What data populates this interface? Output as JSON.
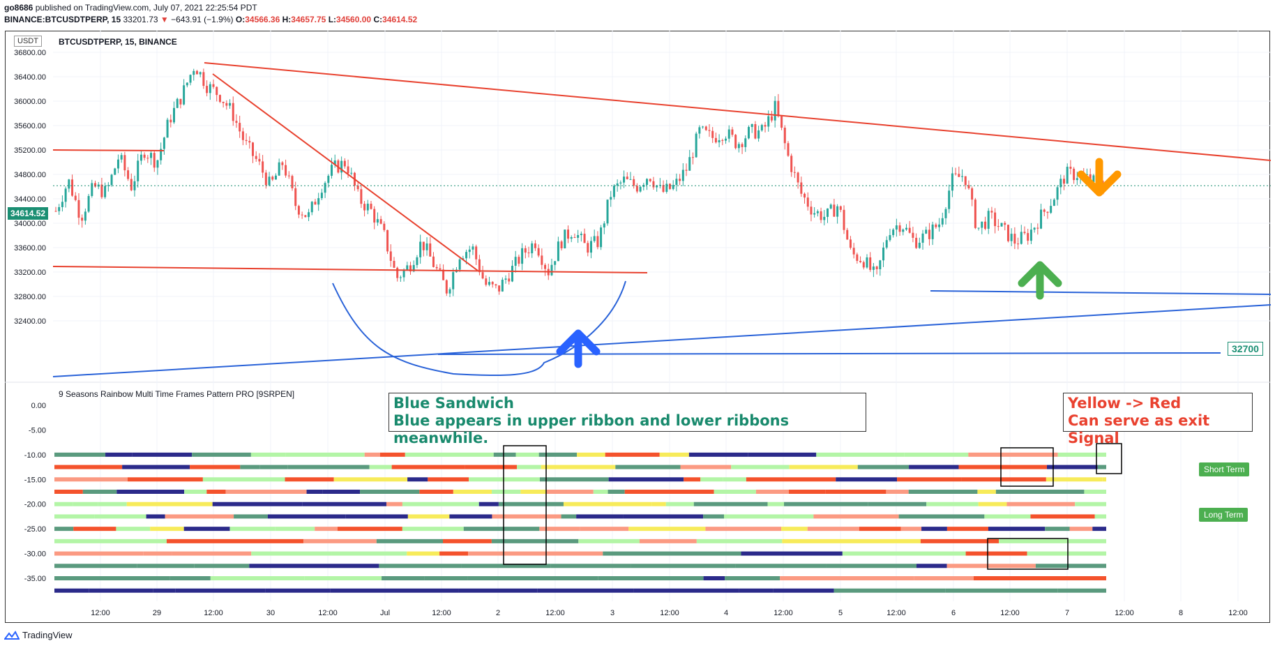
{
  "header": {
    "line1_user": "go8686",
    "line1_rest": "published on TradingView.com, July 07, 2021 22:25:54 PDT",
    "symbol": "BINANCE:BTCUSDTPERP, 15",
    "last": "33201.73",
    "change": "−643.91 (−1.9%)",
    "o_label": "O:",
    "o": "34566.36",
    "h_label": "H:",
    "h": "34657.75",
    "l_label": "L:",
    "l": "34560.00",
    "c_label": "C:",
    "c": "34614.52"
  },
  "chart_title": "BTCUSDTPERP, 15, BINANCE",
  "currency_badge": "USDT",
  "price_badge": "34614.52",
  "level_badge": "32700",
  "indicator_title": "9 Seasons Rainbow Multi Time Frames Pattern PRO [9SRPEN]",
  "annotation_blue": {
    "line1": "Blue Sandwich",
    "line2": "Blue appears in upper ribbon and lower ribbons meanwhile."
  },
  "annotation_red": {
    "line1": "Yellow -> Red",
    "line2": "Can serve as exit Signal"
  },
  "tags": {
    "short": "Short Term",
    "long": "Long Term"
  },
  "footer": "TradingView",
  "colors": {
    "red_line": "#e8412e",
    "blue_line": "#2962d8",
    "candle_up": "#26a69a",
    "candle_down": "#ef5350",
    "arrow_blue": "#2962ff",
    "arrow_green": "#4caf50",
    "arrow_orange": "#ff9800"
  },
  "chart_data": [
    {
      "type": "candlestick",
      "title": "BTCUSDTPERP, 15, BINANCE",
      "yticks": [
        36800,
        36400,
        36000,
        35600,
        35200,
        34800,
        34400,
        34000,
        33600,
        33200,
        32800,
        32400
      ],
      "ylim": [
        32350,
        36900
      ],
      "xticks": [
        "12:00",
        "29",
        "12:00",
        "30",
        "12:00",
        "Jul",
        "12:00",
        "2",
        "12:00",
        "3",
        "12:00",
        "4",
        "12:00",
        "5",
        "12:00",
        "6",
        "12:00",
        "7",
        "12:00",
        "8",
        "12:00"
      ],
      "last_price": 34614.52,
      "price_path": [
        [
          0,
          34200
        ],
        [
          1,
          34700
        ],
        [
          2,
          34100
        ],
        [
          3,
          34600
        ],
        [
          4,
          34500
        ],
        [
          5,
          35100
        ],
        [
          6,
          34600
        ],
        [
          7,
          35200
        ],
        [
          8,
          35000
        ],
        [
          9,
          35700
        ],
        [
          10,
          36100
        ],
        [
          11,
          36600
        ],
        [
          12,
          36250
        ],
        [
          13,
          36100
        ],
        [
          14,
          35800
        ],
        [
          15,
          35300
        ],
        [
          16,
          35000
        ],
        [
          17,
          34600
        ],
        [
          18,
          35000
        ],
        [
          19,
          34300
        ],
        [
          20,
          34100
        ],
        [
          21,
          34600
        ],
        [
          22,
          34900
        ],
        [
          23,
          35000
        ],
        [
          24,
          34400
        ],
        [
          25,
          34200
        ],
        [
          26,
          33800
        ],
        [
          27,
          33100
        ],
        [
          28,
          33300
        ],
        [
          29,
          33700
        ],
        [
          30,
          33300
        ],
        [
          31,
          32900
        ],
        [
          32,
          33500
        ],
        [
          33,
          33600
        ],
        [
          34,
          33000
        ],
        [
          35,
          32900
        ],
        [
          36,
          33200
        ],
        [
          37,
          33500
        ],
        [
          38,
          33700
        ],
        [
          39,
          33200
        ],
        [
          40,
          33700
        ],
        [
          41,
          33900
        ],
        [
          42,
          33600
        ],
        [
          43,
          33700
        ],
        [
          44,
          34500
        ],
        [
          45,
          34700
        ],
        [
          46,
          34600
        ],
        [
          47,
          34800
        ],
        [
          48,
          34500
        ],
        [
          49,
          34600
        ],
        [
          50,
          34900
        ],
        [
          51,
          35500
        ],
        [
          52,
          35400
        ],
        [
          53,
          35500
        ],
        [
          54,
          35300
        ],
        [
          55,
          35500
        ],
        [
          56,
          35500
        ],
        [
          57,
          35900
        ],
        [
          58,
          35100
        ],
        [
          59,
          34500
        ],
        [
          60,
          34200
        ],
        [
          61,
          34100
        ],
        [
          62,
          34300
        ],
        [
          63,
          33500
        ],
        [
          64,
          33400
        ],
        [
          65,
          33100
        ],
        [
          66,
          33900
        ],
        [
          67,
          34000
        ],
        [
          68,
          33700
        ],
        [
          69,
          33800
        ],
        [
          70,
          34000
        ],
        [
          71,
          34700
        ],
        [
          72,
          34800
        ],
        [
          73,
          33900
        ],
        [
          74,
          34100
        ],
        [
          75,
          33900
        ],
        [
          76,
          33700
        ],
        [
          77,
          33800
        ],
        [
          78,
          34100
        ],
        [
          79,
          34400
        ],
        [
          80,
          34800
        ],
        [
          81,
          34800
        ],
        [
          82,
          34700
        ],
        [
          83,
          34600
        ]
      ]
    },
    {
      "type": "heatmap",
      "title": "9 Seasons Rainbow Multi Time Frames Pattern PRO [9SRPEN]",
      "yticks": [
        0,
        -5,
        -10,
        -15,
        -20,
        -25,
        -30,
        -35
      ],
      "rows": [
        -10,
        -12.5,
        -15,
        -17.5,
        -20,
        -22.5,
        -25,
        -27.5,
        -30,
        -32.5,
        -35,
        -37.5
      ],
      "categories": [
        "dark-blue",
        "teal",
        "light-green",
        "yellow",
        "salmon",
        "red",
        "green",
        "magenta"
      ]
    }
  ]
}
